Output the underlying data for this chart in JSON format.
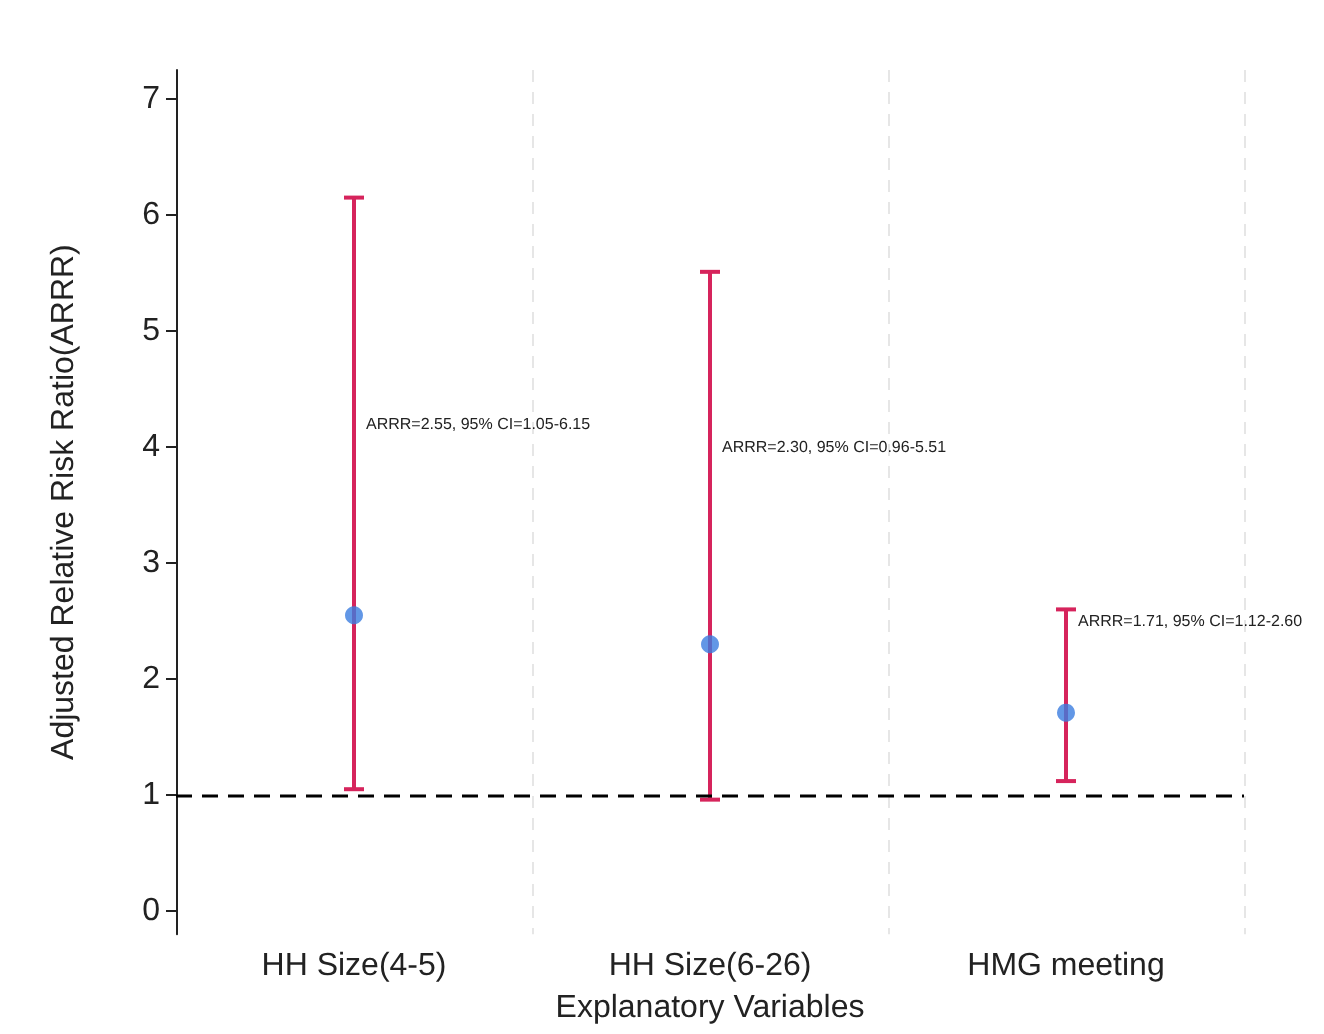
{
  "chart_data": {
    "type": "scatter",
    "xlabel": "Explanatory Variables",
    "ylabel": "Adjusted Relative Risk Ratio(ARRR)",
    "categories": [
      "HH Size(4-5)",
      "HH Size(6-26)",
      "HMG meeting"
    ],
    "series": [
      {
        "color": "#3b7de0",
        "values": [
          2.55,
          2.3,
          1.71
        ],
        "errors": [
          [
            1.05,
            6.15
          ],
          [
            0.96,
            5.51
          ],
          [
            1.12,
            2.6
          ]
        ]
      }
    ],
    "ylim": [
      -0.2,
      7.25
    ],
    "yticks": [
      0,
      1,
      2,
      3,
      4,
      5,
      6,
      7
    ],
    "grid": "x",
    "marker": "circle",
    "ref_lines": [
      {
        "axis": "y",
        "value": 1,
        "color": "#000000",
        "line_style": "dashed"
      }
    ],
    "annotations": [
      {
        "text": "ARRR=2.55, 95% CI=1.05-6.15",
        "x": "HH Size(4-5)",
        "y": 4.2
      },
      {
        "text": "ARRR=2.30, 95% CI=0.96-5.51",
        "x": "HH Size(6-26)",
        "y": 4.0
      },
      {
        "text": "ARRR=1.71, 95% CI=1.12-2.60",
        "x": "HMG meeting",
        "y": 2.5
      }
    ]
  }
}
